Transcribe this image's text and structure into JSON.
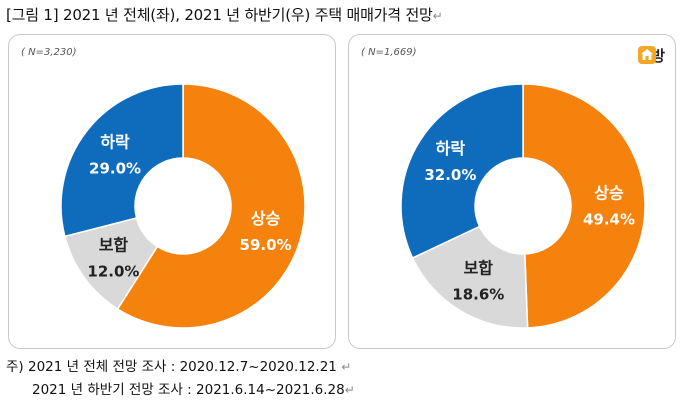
{
  "title": "[그림 1] 2021 년 전체(좌), 2021 년 하반기(우) 주택 매매가격 전망",
  "paragraph_mark": "↵",
  "logo_text": "직방",
  "colors": {
    "up": "#f5820c",
    "flat": "#d9d9d9",
    "down": "#0f6cbd",
    "border": "#c9c9c9"
  },
  "chart_data": [
    {
      "type": "pie",
      "note": "( N=3,230)",
      "slices": [
        {
          "label": "상승",
          "value": 59.0,
          "display": "59.0%",
          "color": "#f5820c"
        },
        {
          "label": "보합",
          "value": 12.0,
          "display": "12.0%",
          "color": "#d9d9d9"
        },
        {
          "label": "하락",
          "value": 29.0,
          "display": "29.0%",
          "color": "#0f6cbd"
        }
      ]
    },
    {
      "type": "pie",
      "note": "( N=1,669)",
      "slices": [
        {
          "label": "상승",
          "value": 49.4,
          "display": "49.4%",
          "color": "#f5820c"
        },
        {
          "label": "보합",
          "value": 18.6,
          "display": "18.6%",
          "color": "#d9d9d9"
        },
        {
          "label": "하락",
          "value": 32.0,
          "display": "32.0%",
          "color": "#0f6cbd"
        }
      ]
    }
  ],
  "notes": {
    "line1": "주) 2021 년 전체 전망 조사 : 2020.12.7~2020.12.21 ",
    "line2": "2021 년 하반기 전망 조사 : 2021.6.14~2021.6.28"
  }
}
